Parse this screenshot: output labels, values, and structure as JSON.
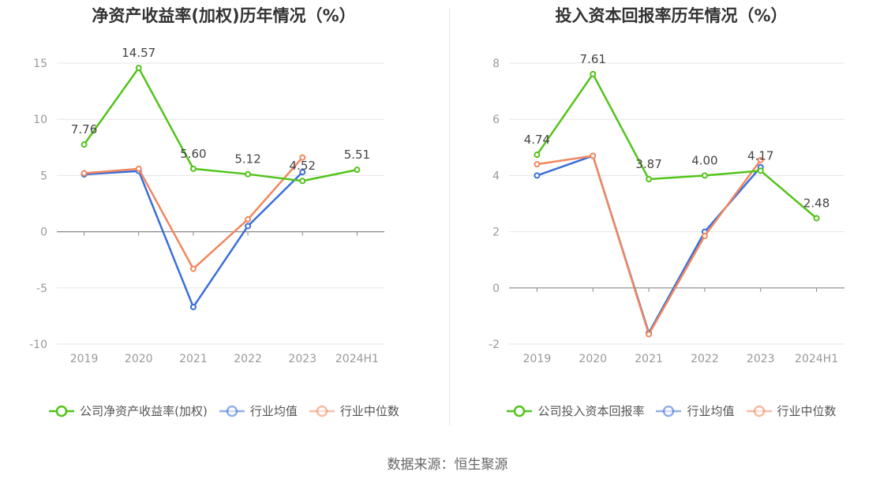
{
  "source_text": "数据来源：恒生聚源",
  "chart_data": [
    {
      "type": "line",
      "title": "净资产收益率(加权)历年情况（%）",
      "categories": [
        "2019",
        "2020",
        "2021",
        "2022",
        "2023",
        "2024H1"
      ],
      "ylim": [
        -10,
        15
      ],
      "yticks": [
        -10,
        -5,
        0,
        5,
        10,
        15
      ],
      "grid": true,
      "legend_position": "bottom",
      "series": [
        {
          "name": "公司净资产收益率(加权)",
          "color": "#52c41a",
          "labeled": true,
          "values": [
            7.76,
            14.57,
            5.6,
            5.12,
            4.52,
            5.51
          ],
          "labels": [
            "7.76",
            "14.57",
            "5.60",
            "5.12",
            "4.52",
            "5.51"
          ]
        },
        {
          "name": "行业均值",
          "color": "#3a6fd8",
          "labeled": false,
          "values": [
            5.1,
            5.4,
            -6.7,
            0.5,
            5.3,
            null
          ]
        },
        {
          "name": "行业中位数",
          "color": "#f0875f",
          "labeled": false,
          "values": [
            5.2,
            5.6,
            -3.3,
            1.1,
            6.6,
            null
          ]
        }
      ]
    },
    {
      "type": "line",
      "title": "投入资本回报率历年情况（%）",
      "categories": [
        "2019",
        "2020",
        "2021",
        "2022",
        "2023",
        "2024H1"
      ],
      "ylim": [
        -2,
        8
      ],
      "yticks": [
        -2,
        0,
        2,
        4,
        6,
        8
      ],
      "grid": true,
      "legend_position": "bottom",
      "series": [
        {
          "name": "公司投入资本回报率",
          "color": "#52c41a",
          "labeled": true,
          "values": [
            4.74,
            7.61,
            3.87,
            4.0,
            4.17,
            2.48
          ],
          "labels": [
            "4.74",
            "7.61",
            "3.87",
            "4.00",
            "4.17",
            "2.48"
          ]
        },
        {
          "name": "行业均值",
          "color": "#3a6fd8",
          "labeled": false,
          "values": [
            4.0,
            4.7,
            -1.6,
            2.0,
            4.3,
            null
          ]
        },
        {
          "name": "行业中位数",
          "color": "#f0875f",
          "labeled": false,
          "values": [
            4.4,
            4.7,
            -1.65,
            1.85,
            4.55,
            null
          ]
        }
      ]
    }
  ]
}
